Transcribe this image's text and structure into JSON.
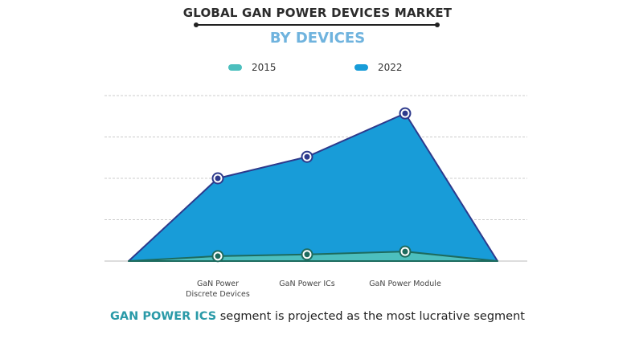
{
  "title": "GLOBAL GAN POWER DEVICES MARKET",
  "subtitle": "BY DEVICES",
  "footer": {
    "highlight": "GAN POWER ICS",
    "text": " segment is projected as the most lucrative segment"
  },
  "chart_data": {
    "type": "area",
    "categories": [
      [
        "GaN Power",
        "Discrete Devices"
      ],
      [
        "GaN Power ICs"
      ],
      [
        "GaN Power Module"
      ]
    ],
    "series": [
      {
        "name": "2022",
        "values": [
          2.0,
          2.52,
          3.57
        ],
        "color": "#189cd8",
        "line": "#2d3a8c"
      },
      {
        "name": "2015",
        "values": [
          0.12,
          0.16,
          0.23
        ],
        "color": "#4cbfbe",
        "line": "#1d6b5e"
      }
    ],
    "ylim": [
      0,
      4
    ],
    "y_ticks_labeled": false,
    "grid": true,
    "legend": "top-center",
    "xlabel": "",
    "ylabel": ""
  }
}
